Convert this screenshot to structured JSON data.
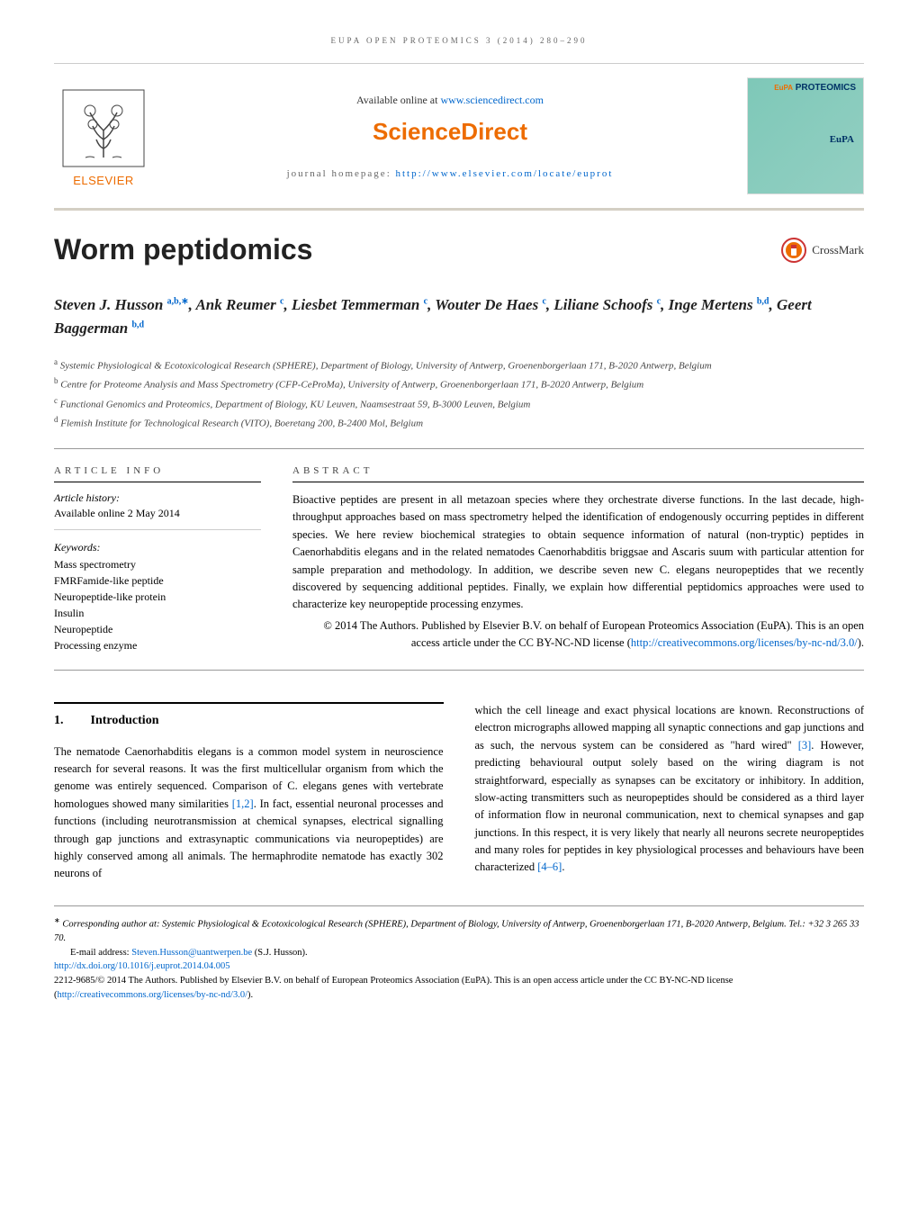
{
  "header": {
    "running_head": "EUPA OPEN PROTEOMICS 3 (2014) 280–290",
    "available_text": "Available online at ",
    "available_link": "www.sciencedirect.com",
    "sciencedirect": "ScienceDirect",
    "homepage_label": "journal homepage: ",
    "homepage_link": "http://www.elsevier.com/locate/euprot",
    "elsevier": "ELSEVIER",
    "journal_brand_top": "PROTEOMICS",
    "journal_brand_eupa": "EuPA"
  },
  "crossmark": "CrossMark",
  "title": "Worm peptidomics",
  "authors_html": "Steven J. Husson <sup>a,b,∗</sup>, Ank Reumer <sup>c</sup>, Liesbet Temmerman <sup>c</sup>, Wouter De Haes <sup>c</sup>, Liliane Schoofs <sup>c</sup>, Inge Mertens <sup>b,d</sup>, Geert Baggerman <sup>b,d</sup>",
  "affiliations": [
    {
      "sup": "a",
      "text": "Systemic Physiological & Ecotoxicological Research (SPHERE), Department of Biology, University of Antwerp, Groenenborgerlaan 171, B-2020 Antwerp, Belgium"
    },
    {
      "sup": "b",
      "text": "Centre for Proteome Analysis and Mass Spectrometry (CFP-CeProMa), University of Antwerp, Groenenborgerlaan 171, B-2020 Antwerp, Belgium"
    },
    {
      "sup": "c",
      "text": "Functional Genomics and Proteomics, Department of Biology, KU Leuven, Naamsestraat 59, B-3000 Leuven, Belgium"
    },
    {
      "sup": "d",
      "text": "Flemish Institute for Technological Research (VITO), Boeretang 200, B-2400 Mol, Belgium"
    }
  ],
  "article_info": {
    "heading": "ARTICLE INFO",
    "history_label": "Article history:",
    "history_text": "Available online 2 May 2014",
    "keywords_label": "Keywords:",
    "keywords": [
      "Mass spectrometry",
      "FMRFamide-like peptide",
      "Neuropeptide-like protein",
      "Insulin",
      "Neuropeptide",
      "Processing enzyme"
    ]
  },
  "abstract": {
    "heading": "ABSTRACT",
    "text": "Bioactive peptides are present in all metazoan species where they orchestrate diverse functions. In the last decade, high-throughput approaches based on mass spectrometry helped the identification of endogenously occurring peptides in different species. We here review biochemical strategies to obtain sequence information of natural (non-tryptic) peptides in Caenorhabditis elegans and in the related nematodes Caenorhabditis briggsae and Ascaris suum with particular attention for sample preparation and methodology. In addition, we describe seven new C. elegans neuropeptides that we recently discovered by sequencing additional peptides. Finally, we explain how differential peptidomics approaches were used to characterize key neuropeptide processing enzymes.",
    "copyright": "© 2014 The Authors. Published by Elsevier B.V. on behalf of European Proteomics Association (EuPA). This is an open access article under the CC BY-NC-ND license (",
    "license_link": "http://creativecommons.org/licenses/by-nc-nd/3.0/",
    "copyright_end": ")."
  },
  "intro": {
    "num": "1.",
    "heading": "Introduction",
    "col1": "The nematode Caenorhabditis elegans is a common model system in neuroscience research for several reasons. It was the first multicellular organism from which the genome was entirely sequenced. Comparison of C. elegans genes with vertebrate homologues showed many similarities [1,2]. In fact, essential neuronal processes and functions (including neurotransmission at chemical synapses, electrical signalling through gap junctions and extrasynaptic communications via neuropeptides) are highly conserved among all animals. The hermaphrodite nematode has exactly 302 neurons of",
    "col2": "which the cell lineage and exact physical locations are known. Reconstructions of electron micrographs allowed mapping all synaptic connections and gap junctions and as such, the nervous system can be considered as \"hard wired\" [3]. However, predicting behavioural output solely based on the wiring diagram is not straightforward, especially as synapses can be excitatory or inhibitory. In addition, slow-acting transmitters such as neuropeptides should be considered as a third layer of information flow in neuronal communication, next to chemical synapses and gap junctions. In this respect, it is very likely that nearly all neurons secrete neuropeptides and many roles for peptides in key physiological processes and behaviours have been characterized [4–6]."
  },
  "footer": {
    "corresponding": "Corresponding author at: Systemic Physiological & Ecotoxicological Research (SPHERE), Department of Biology, University of Antwerp, Groenenborgerlaan 171, B-2020 Antwerp, Belgium. Tel.: +32 3 265 33 70.",
    "email_label": "E-mail address: ",
    "email": "Steven.Husson@uantwerpen.be",
    "email_suffix": " (S.J. Husson).",
    "doi": "http://dx.doi.org/10.1016/j.euprot.2014.04.005",
    "issn_copyright": "2212-9685/© 2014 The Authors. Published by Elsevier B.V. on behalf of European Proteomics Association (EuPA). This is an open access article under the CC BY-NC-ND license (",
    "license_link": "http://creativecommons.org/licenses/by-nc-nd/3.0/",
    "copyright_end": ")."
  },
  "colors": {
    "elsevier_orange": "#ed6c00",
    "link_blue": "#0066cc",
    "journal_bg": "#7ec8b8",
    "text": "#000000",
    "border": "#999999"
  }
}
